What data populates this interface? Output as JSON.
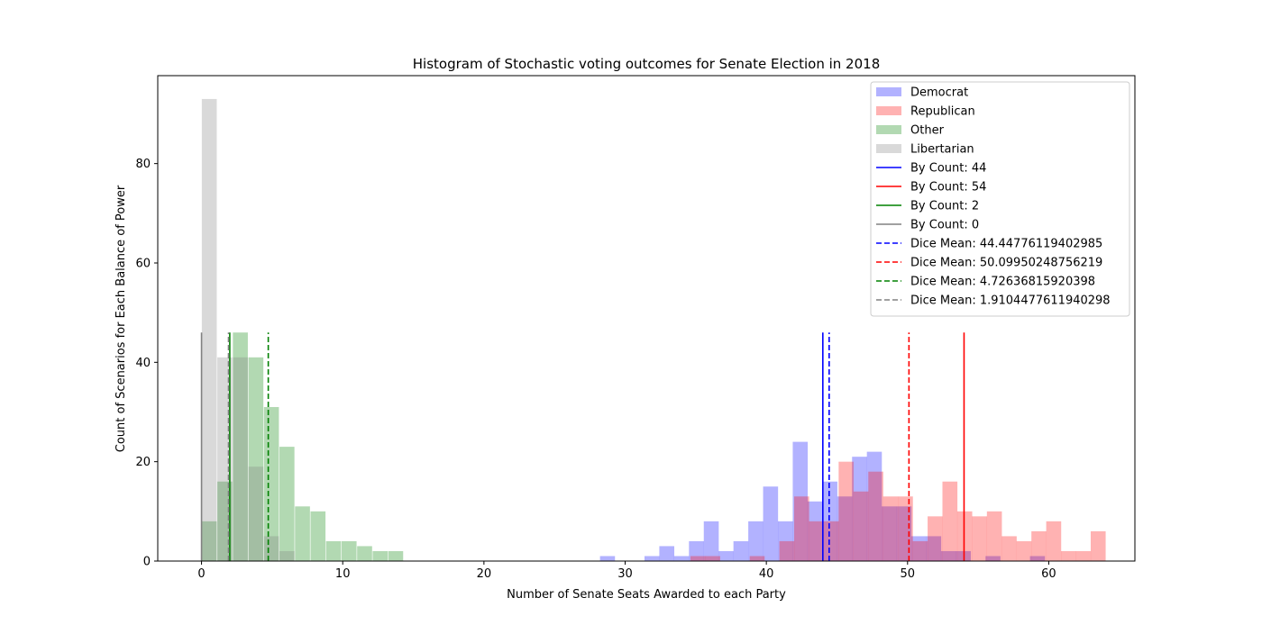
{
  "chart_data": {
    "type": "bar",
    "title": "Histogram of Stochastic voting outcomes for Senate Election in 2018",
    "xlabel": "Number of Senate Seats Awarded to each Party",
    "ylabel": "Count of Scenarios for Each Balance of Power",
    "xlim": [
      -3.1,
      66.1
    ],
    "ylim": [
      0,
      97.7
    ],
    "xticks": [
      0,
      10,
      20,
      30,
      40,
      50,
      60
    ],
    "yticks": [
      0,
      20,
      40,
      60,
      80
    ],
    "legend_position": "top-right",
    "bin_width": 1.06,
    "series": [
      {
        "name": "Democrat",
        "color": "#0000ff",
        "opacity": 0.3,
        "bins": [
          {
            "x": 28.75,
            "y": 1
          },
          {
            "x": 31.9,
            "y": 1
          },
          {
            "x": 32.95,
            "y": 3
          },
          {
            "x": 34.0,
            "y": 1
          },
          {
            "x": 35.05,
            "y": 4
          },
          {
            "x": 36.1,
            "y": 8
          },
          {
            "x": 37.15,
            "y": 2
          },
          {
            "x": 38.2,
            "y": 4
          },
          {
            "x": 39.25,
            "y": 8
          },
          {
            "x": 40.3,
            "y": 15
          },
          {
            "x": 41.35,
            "y": 8
          },
          {
            "x": 42.4,
            "y": 24
          },
          {
            "x": 43.45,
            "y": 12
          },
          {
            "x": 44.5,
            "y": 16
          },
          {
            "x": 45.55,
            "y": 13
          },
          {
            "x": 46.6,
            "y": 21
          },
          {
            "x": 47.65,
            "y": 22
          },
          {
            "x": 48.7,
            "y": 11
          },
          {
            "x": 49.75,
            "y": 11
          },
          {
            "x": 50.8,
            "y": 5
          },
          {
            "x": 51.85,
            "y": 5
          },
          {
            "x": 52.9,
            "y": 2
          },
          {
            "x": 53.95,
            "y": 2
          },
          {
            "x": 56.05,
            "y": 1
          },
          {
            "x": 59.2,
            "y": 1
          }
        ]
      },
      {
        "name": "Republican",
        "color": "#ff0000",
        "opacity": 0.3,
        "bins": [
          {
            "x": 35.15,
            "y": 1
          },
          {
            "x": 36.2,
            "y": 1
          },
          {
            "x": 39.35,
            "y": 1
          },
          {
            "x": 41.45,
            "y": 4
          },
          {
            "x": 42.5,
            "y": 13
          },
          {
            "x": 43.55,
            "y": 8
          },
          {
            "x": 44.6,
            "y": 8
          },
          {
            "x": 45.65,
            "y": 20
          },
          {
            "x": 46.7,
            "y": 14
          },
          {
            "x": 47.75,
            "y": 18
          },
          {
            "x": 48.8,
            "y": 13
          },
          {
            "x": 49.85,
            "y": 13
          },
          {
            "x": 50.9,
            "y": 4
          },
          {
            "x": 51.95,
            "y": 9
          },
          {
            "x": 53.0,
            "y": 16
          },
          {
            "x": 54.05,
            "y": 10
          },
          {
            "x": 55.1,
            "y": 9
          },
          {
            "x": 56.15,
            "y": 10
          },
          {
            "x": 57.2,
            "y": 5
          },
          {
            "x": 58.25,
            "y": 4
          },
          {
            "x": 59.3,
            "y": 6
          },
          {
            "x": 60.35,
            "y": 8
          },
          {
            "x": 61.4,
            "y": 2
          },
          {
            "x": 62.45,
            "y": 2
          },
          {
            "x": 63.5,
            "y": 6
          }
        ]
      },
      {
        "name": "Other",
        "color": "#008000",
        "opacity": 0.3,
        "bins": [
          {
            "x": 0.55,
            "y": 8
          },
          {
            "x": 1.65,
            "y": 16
          },
          {
            "x": 2.75,
            "y": 46
          },
          {
            "x": 3.85,
            "y": 41
          },
          {
            "x": 4.95,
            "y": 31
          },
          {
            "x": 6.05,
            "y": 23
          },
          {
            "x": 7.15,
            "y": 11
          },
          {
            "x": 8.25,
            "y": 10
          },
          {
            "x": 9.35,
            "y": 4
          },
          {
            "x": 10.45,
            "y": 4
          },
          {
            "x": 11.55,
            "y": 3
          },
          {
            "x": 12.65,
            "y": 2
          },
          {
            "x": 13.75,
            "y": 2
          }
        ]
      },
      {
        "name": "Libertarian",
        "color": "#808080",
        "opacity": 0.3,
        "bins": [
          {
            "x": 0.55,
            "y": 93
          },
          {
            "x": 1.65,
            "y": 41
          },
          {
            "x": 2.75,
            "y": 41
          },
          {
            "x": 3.85,
            "y": 19
          },
          {
            "x": 4.95,
            "y": 5
          },
          {
            "x": 6.05,
            "y": 2
          }
        ]
      }
    ],
    "vlines": [
      {
        "name": "By Count: 44",
        "x": 44,
        "color": "#0000ff",
        "style": "solid"
      },
      {
        "name": "By Count: 54",
        "x": 54,
        "color": "#ff0000",
        "style": "solid"
      },
      {
        "name": "By Count: 2",
        "x": 2,
        "color": "#008000",
        "style": "solid"
      },
      {
        "name": "By Count: 0",
        "x": 0,
        "color": "#808080",
        "style": "solid"
      },
      {
        "name": "Dice Mean: 44.44776119402985",
        "x": 44.44776119402985,
        "color": "#0000ff",
        "style": "dashed"
      },
      {
        "name": "Dice Mean: 50.09950248756219",
        "x": 50.09950248756219,
        "color": "#ff0000",
        "style": "dashed"
      },
      {
        "name": "Dice Mean: 4.72636815920398",
        "x": 4.72636815920398,
        "color": "#008000",
        "style": "dashed"
      },
      {
        "name": "Dice Mean: 1.9104477611940298",
        "x": 1.9104477611940298,
        "color": "#808080",
        "style": "dashed"
      }
    ],
    "vline_height": 46
  }
}
